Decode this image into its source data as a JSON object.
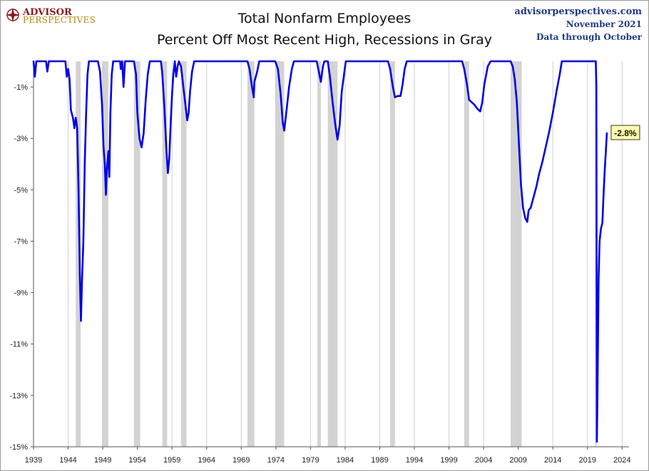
{
  "logo": {
    "line1": "ADVISOR",
    "line2": "PERSPECTIVES"
  },
  "source": {
    "site": "advisorperspectives.com",
    "date": "November 2021",
    "note": "Data through October"
  },
  "chart_data": {
    "type": "line",
    "title": "Total Nonfarm Employees",
    "subtitle": "Percent Off Most Recent High, Recessions in Gray",
    "xlabel": "",
    "ylabel": "",
    "xlim": [
      1939,
      2025
    ],
    "ylim": [
      -15,
      0
    ],
    "x_ticks": [
      1939,
      1944,
      1949,
      1954,
      1959,
      1964,
      1969,
      1974,
      1979,
      1984,
      1989,
      1994,
      1999,
      2004,
      2009,
      2014,
      2019,
      2024
    ],
    "y_ticks": [
      -1,
      -3,
      -5,
      -7,
      -9,
      -11,
      -13,
      -15
    ],
    "grid": {
      "vertical": true,
      "horizontal": false
    },
    "colors": {
      "line": "#0000ee",
      "recession": "#d3d3d3",
      "grid": "#cfcfcf",
      "callout": "#ffffa8"
    },
    "callout": {
      "label": "-2.8%",
      "value": -2.8
    },
    "recessions": [
      [
        1945.1,
        1945.8
      ],
      [
        1948.9,
        1949.8
      ],
      [
        1953.5,
        1954.4
      ],
      [
        1957.6,
        1958.3
      ],
      [
        1960.3,
        1961.1
      ],
      [
        1969.9,
        1970.9
      ],
      [
        1973.9,
        1975.2
      ],
      [
        1980.0,
        1980.5
      ],
      [
        1981.5,
        1982.9
      ],
      [
        1990.5,
        1991.2
      ],
      [
        2001.2,
        2001.9
      ],
      [
        2007.9,
        2009.5
      ],
      [
        2020.1,
        2020.3
      ]
    ],
    "series": [
      {
        "values": [
          [
            1939.0,
            0
          ],
          [
            1939.2,
            -0.6
          ],
          [
            1939.4,
            0
          ],
          [
            1940.0,
            0
          ],
          [
            1940.8,
            0
          ],
          [
            1941.0,
            -0.4
          ],
          [
            1941.2,
            0
          ],
          [
            1943.6,
            0
          ],
          [
            1943.8,
            -0.6
          ],
          [
            1944.0,
            -0.3
          ],
          [
            1944.2,
            -0.7
          ],
          [
            1944.4,
            -1.9
          ],
          [
            1944.7,
            -2.2
          ],
          [
            1944.9,
            -2.6
          ],
          [
            1945.1,
            -2.2
          ],
          [
            1945.3,
            -2.6
          ],
          [
            1945.5,
            -5.0
          ],
          [
            1945.7,
            -8.5
          ],
          [
            1945.85,
            -10.1
          ],
          [
            1946.0,
            -8.5
          ],
          [
            1946.2,
            -7.0
          ],
          [
            1946.4,
            -4.0
          ],
          [
            1946.6,
            -2.0
          ],
          [
            1946.8,
            -0.5
          ],
          [
            1947.0,
            0
          ],
          [
            1948.3,
            0
          ],
          [
            1948.6,
            -0.4
          ],
          [
            1948.9,
            -1.7
          ],
          [
            1949.1,
            -3.3
          ],
          [
            1949.3,
            -4.0
          ],
          [
            1949.45,
            -5.2
          ],
          [
            1949.6,
            -4.2
          ],
          [
            1949.8,
            -3.5
          ],
          [
            1949.95,
            -4.5
          ],
          [
            1950.1,
            -2.0
          ],
          [
            1950.3,
            -0.5
          ],
          [
            1950.5,
            0
          ],
          [
            1951.5,
            0
          ],
          [
            1951.6,
            -0.3
          ],
          [
            1951.8,
            0
          ],
          [
            1952.0,
            -1.0
          ],
          [
            1952.2,
            0
          ],
          [
            1953.5,
            0
          ],
          [
            1953.8,
            -0.5
          ],
          [
            1954.0,
            -2.0
          ],
          [
            1954.3,
            -3.0
          ],
          [
            1954.6,
            -3.35
          ],
          [
            1954.9,
            -2.8
          ],
          [
            1955.2,
            -1.5
          ],
          [
            1955.5,
            -0.5
          ],
          [
            1955.8,
            0
          ],
          [
            1957.4,
            0
          ],
          [
            1957.6,
            -0.5
          ],
          [
            1957.9,
            -1.8
          ],
          [
            1958.2,
            -3.5
          ],
          [
            1958.4,
            -4.35
          ],
          [
            1958.6,
            -3.8
          ],
          [
            1958.8,
            -2.5
          ],
          [
            1959.0,
            -1.3
          ],
          [
            1959.2,
            -0.5
          ],
          [
            1959.4,
            0
          ],
          [
            1959.6,
            -0.6
          ],
          [
            1959.8,
            -0.2
          ],
          [
            1960.0,
            0
          ],
          [
            1960.3,
            -0.2
          ],
          [
            1960.6,
            -0.9
          ],
          [
            1960.9,
            -1.6
          ],
          [
            1961.2,
            -2.3
          ],
          [
            1961.4,
            -2.0
          ],
          [
            1961.6,
            -1.2
          ],
          [
            1961.9,
            -0.4
          ],
          [
            1962.2,
            0
          ],
          [
            1969.9,
            0
          ],
          [
            1970.2,
            -0.3
          ],
          [
            1970.5,
            -0.9
          ],
          [
            1970.8,
            -1.4
          ],
          [
            1970.9,
            -0.8
          ],
          [
            1971.3,
            -0.4
          ],
          [
            1971.6,
            0
          ],
          [
            1973.9,
            0
          ],
          [
            1974.3,
            -0.3
          ],
          [
            1974.7,
            -1.3
          ],
          [
            1975.0,
            -2.4
          ],
          [
            1975.2,
            -2.7
          ],
          [
            1975.5,
            -2.0
          ],
          [
            1975.9,
            -1.0
          ],
          [
            1976.3,
            -0.3
          ],
          [
            1976.6,
            0
          ],
          [
            1979.9,
            0
          ],
          [
            1980.2,
            -0.4
          ],
          [
            1980.5,
            -0.8
          ],
          [
            1980.8,
            -0.2
          ],
          [
            1981.0,
            0
          ],
          [
            1981.5,
            0
          ],
          [
            1981.8,
            -0.6
          ],
          [
            1982.2,
            -1.6
          ],
          [
            1982.6,
            -2.5
          ],
          [
            1982.9,
            -3.05
          ],
          [
            1983.2,
            -2.5
          ],
          [
            1983.5,
            -1.2
          ],
          [
            1983.8,
            -0.6
          ],
          [
            1984.1,
            0
          ],
          [
            1990.2,
            0
          ],
          [
            1990.5,
            -0.3
          ],
          [
            1990.9,
            -1.0
          ],
          [
            1991.2,
            -1.4
          ],
          [
            1991.6,
            -1.35
          ],
          [
            1992.0,
            -1.35
          ],
          [
            1992.3,
            -0.9
          ],
          [
            1992.6,
            -0.3
          ],
          [
            1992.9,
            0
          ],
          [
            2000.9,
            0
          ],
          [
            2001.2,
            -0.3
          ],
          [
            2001.6,
            -0.9
          ],
          [
            2001.9,
            -1.5
          ],
          [
            2002.3,
            -1.6
          ],
          [
            2002.7,
            -1.7
          ],
          [
            2003.1,
            -1.85
          ],
          [
            2003.5,
            -1.95
          ],
          [
            2003.8,
            -1.6
          ],
          [
            2004.1,
            -0.9
          ],
          [
            2004.6,
            -0.2
          ],
          [
            2005.0,
            0
          ],
          [
            2007.9,
            0
          ],
          [
            2008.2,
            -0.2
          ],
          [
            2008.5,
            -0.7
          ],
          [
            2008.8,
            -1.6
          ],
          [
            2009.1,
            -3.2
          ],
          [
            2009.4,
            -4.8
          ],
          [
            2009.7,
            -5.7
          ],
          [
            2010.0,
            -6.1
          ],
          [
            2010.3,
            -6.25
          ],
          [
            2010.5,
            -5.8
          ],
          [
            2010.8,
            -5.7
          ],
          [
            2011.2,
            -5.3
          ],
          [
            2011.6,
            -4.9
          ],
          [
            2012.0,
            -4.4
          ],
          [
            2012.5,
            -3.9
          ],
          [
            2013.0,
            -3.3
          ],
          [
            2013.5,
            -2.7
          ],
          [
            2014.0,
            -2.0
          ],
          [
            2014.5,
            -1.2
          ],
          [
            2015.0,
            -0.5
          ],
          [
            2015.3,
            0
          ],
          [
            2020.2,
            0
          ],
          [
            2020.28,
            -1.0
          ],
          [
            2020.35,
            -14.8
          ],
          [
            2020.45,
            -12.8
          ],
          [
            2020.6,
            -8.5
          ],
          [
            2020.75,
            -7.0
          ],
          [
            2020.95,
            -6.5
          ],
          [
            2021.15,
            -6.3
          ],
          [
            2021.35,
            -5.0
          ],
          [
            2021.5,
            -4.2
          ],
          [
            2021.65,
            -3.5
          ],
          [
            2021.8,
            -2.8
          ]
        ]
      }
    ]
  }
}
